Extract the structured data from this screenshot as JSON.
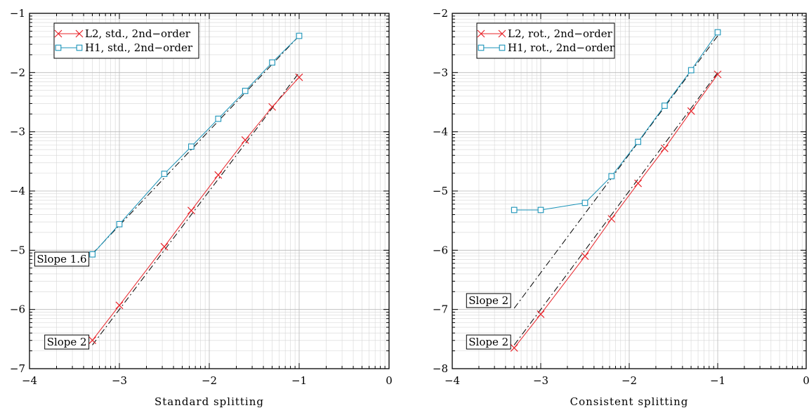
{
  "chart_data": [
    {
      "type": "line",
      "xlabel": "Standard splitting",
      "ylabel": "",
      "title": "",
      "xlim": [
        -4,
        0
      ],
      "ylim": [
        -7,
        -1
      ],
      "x_ticks": [
        -4,
        -3,
        -2,
        -1,
        0
      ],
      "y_ticks": [
        -7,
        -6,
        -5,
        -4,
        -3,
        -2,
        -1
      ],
      "x_tick_labels": [
        "−4",
        "−3",
        "−2",
        "−1",
        "0"
      ],
      "y_tick_labels": [
        "−7",
        "−6",
        "−5",
        "−4",
        "−3",
        "−2",
        "−1"
      ],
      "grid": true,
      "grid_scale": "log-decade",
      "legend_position": "top-left",
      "series": [
        {
          "name": "L2, std., 2nd−order",
          "color": "#e8242a",
          "marker": "x",
          "x": [
            -3.3,
            -3.0,
            -2.5,
            -2.2,
            -1.9,
            -1.6,
            -1.3,
            -1.0
          ],
          "y": [
            -6.52,
            -5.93,
            -4.94,
            -4.33,
            -3.73,
            -3.14,
            -2.58,
            -2.08
          ]
        },
        {
          "name": "H1, std., 2nd−order",
          "color": "#1a93b8",
          "marker": "square",
          "x": [
            -3.3,
            -3.0,
            -2.5,
            -2.2,
            -1.9,
            -1.6,
            -1.3,
            -1.0
          ],
          "y": [
            -5.07,
            -4.56,
            -3.71,
            -3.25,
            -2.78,
            -2.31,
            -1.83,
            -1.38
          ]
        }
      ],
      "reference_lines": [
        {
          "slope": 2,
          "x": [
            -3.3,
            -1.0
          ],
          "y": [
            -6.6,
            -2.0
          ],
          "style": "dash-dot",
          "color": "#000000"
        },
        {
          "slope": 1.6,
          "x": [
            -3.3,
            -1.0
          ],
          "y": [
            -5.06,
            -1.38
          ],
          "style": "dash-dot",
          "color": "#000000"
        }
      ],
      "annotations": [
        {
          "text": "Slope 1.6",
          "at_x": -3.3,
          "at_y": -5.15
        },
        {
          "text": "Slope 2",
          "at_x": -3.3,
          "at_y": -6.55
        }
      ]
    },
    {
      "type": "line",
      "xlabel": "Consistent splitting",
      "ylabel": "",
      "title": "",
      "xlim": [
        -4,
        0
      ],
      "ylim": [
        -8,
        -2
      ],
      "x_ticks": [
        -4,
        -3,
        -2,
        -1,
        0
      ],
      "y_ticks": [
        -8,
        -7,
        -6,
        -5,
        -4,
        -3,
        -2
      ],
      "x_tick_labels": [
        "−4",
        "−3",
        "−2",
        "−1",
        "0"
      ],
      "y_tick_labels": [
        "−8",
        "−7",
        "−6",
        "−5",
        "−4",
        "−3",
        "−2"
      ],
      "grid": true,
      "grid_scale": "log-decade",
      "legend_position": "top-left",
      "series": [
        {
          "name": "L2, rot., 2nd−order",
          "color": "#e8242a",
          "marker": "x",
          "x": [
            -3.3,
            -3.0,
            -2.5,
            -2.2,
            -1.9,
            -1.6,
            -1.3,
            -1.0
          ],
          "y": [
            -7.65,
            -7.08,
            -6.1,
            -5.47,
            -4.87,
            -4.28,
            -3.65,
            -3.03
          ]
        },
        {
          "name": "H1, rot., 2nd−order",
          "color": "#1a93b8",
          "marker": "square",
          "x": [
            -3.3,
            -3.0,
            -2.5,
            -2.2,
            -1.9,
            -1.6,
            -1.3,
            -1.0
          ],
          "y": [
            -5.32,
            -5.32,
            -5.2,
            -4.75,
            -4.17,
            -3.56,
            -2.96,
            -2.32
          ]
        }
      ],
      "reference_lines": [
        {
          "slope": 2,
          "x": [
            -3.3,
            -1.0
          ],
          "y": [
            -7.6,
            -3.0
          ],
          "style": "dash-dot",
          "color": "#000000"
        },
        {
          "slope": 2,
          "x": [
            -3.3,
            -1.0
          ],
          "y": [
            -6.98,
            -2.38
          ],
          "style": "dash-dot",
          "color": "#000000"
        }
      ],
      "annotations": [
        {
          "text": "Slope 2",
          "at_x": -3.3,
          "at_y": -6.85
        },
        {
          "text": "Slope 2",
          "at_x": -3.3,
          "at_y": -7.55
        }
      ]
    }
  ]
}
